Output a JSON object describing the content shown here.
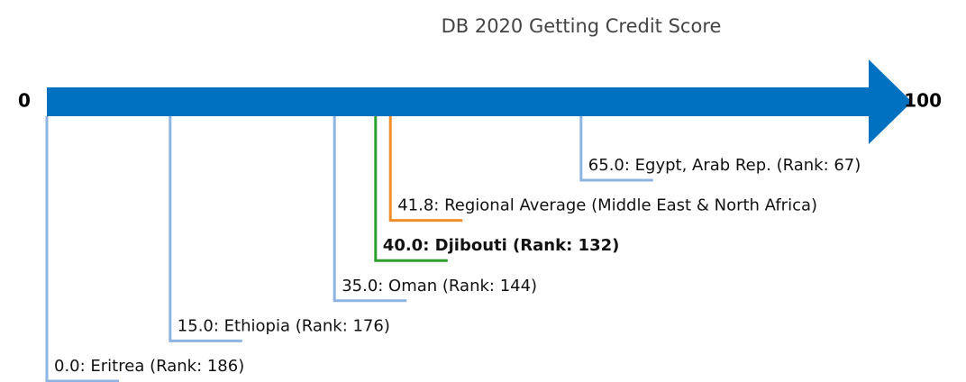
{
  "chart_data": {
    "type": "number-line",
    "title": "DB 2020 Getting Credit Score",
    "xlim": [
      0,
      100
    ],
    "xticks": [
      0,
      100
    ],
    "axis_color": "#0070c0",
    "values": [
      0,
      15,
      35,
      40,
      41.8,
      65
    ],
    "value_labels": [
      "0.0: Eritrea (Rank: 186)",
      "15.0: Ethiopia (Rank: 176)",
      "35.0: Oman (Rank: 144)",
      "40.0: Djibouti (Rank: 132)",
      "41.8: Regional Average (Middle East & North Africa)",
      "65.0: Egypt, Arab Rep. (Rank: 67)"
    ],
    "colors": [
      "#8db4e2",
      "#8db4e2",
      "#8db4e2",
      "#2ca02c",
      "#f28e2b",
      "#8db4e2"
    ],
    "bold": [
      false,
      false,
      false,
      true,
      false,
      false
    ]
  }
}
